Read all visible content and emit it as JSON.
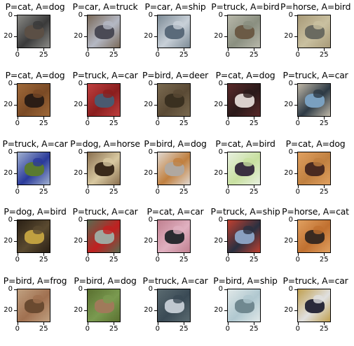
{
  "figure": {
    "axis": {
      "y_ticks": [
        "0",
        "20"
      ],
      "x_ticks": [
        "0",
        "25"
      ]
    },
    "panels": [
      {
        "title": "P=cat, A=dog",
        "image": "dark animal on grey",
        "colors": [
          "#3a3a3a",
          "#5b4f45",
          "#8a8a86"
        ]
      },
      {
        "title": "P=car, A=truck",
        "image": "truck",
        "colors": [
          "#b4b8c4",
          "#4a4a55",
          "#7a6a5a"
        ]
      },
      {
        "title": "P=car, A=ship",
        "image": "ship",
        "colors": [
          "#c8d0d8",
          "#5a6a7a",
          "#7d8b96"
        ]
      },
      {
        "title": "P=truck, A=bird",
        "image": "bird",
        "colors": [
          "#8a8f80",
          "#6b5a45",
          "#b8b8aa"
        ]
      },
      {
        "title": "P=horse, A=bird",
        "image": "bird on sand",
        "colors": [
          "#c9c0a0",
          "#6a6a60",
          "#a89a78"
        ]
      },
      {
        "title": "P=cat, A=dog",
        "image": "dog",
        "colors": [
          "#7a4a25",
          "#2b1d15",
          "#a06a3a"
        ]
      },
      {
        "title": "P=truck, A=car",
        "image": "red car",
        "colors": [
          "#8a1e1e",
          "#4a5a70",
          "#c04040"
        ]
      },
      {
        "title": "P=bird, A=deer",
        "image": "deer",
        "colors": [
          "#5a4a35",
          "#3a3020",
          "#7a6a50"
        ]
      },
      {
        "title": "P=cat, A=dog",
        "image": "dark dog",
        "colors": [
          "#2a1a1a",
          "#d9d0cc",
          "#5a2a2a"
        ]
      },
      {
        "title": "P=truck, A=car",
        "image": "car",
        "colors": [
          "#2d3a45",
          "#7aa0c0",
          "#c0b8a8"
        ]
      },
      {
        "title": "P=truck, A=car",
        "image": "blue car",
        "colors": [
          "#2a3a9a",
          "#5a7a30",
          "#a0b0d0"
        ]
      },
      {
        "title": "P=dog, A=horse",
        "image": "horse",
        "colors": [
          "#d8c8a0",
          "#3a2a1a",
          "#8a7050"
        ]
      },
      {
        "title": "P=bird, A=dog",
        "image": "dog",
        "colors": [
          "#c08040",
          "#b0a8a0",
          "#e0d8d0"
        ]
      },
      {
        "title": "P=cat, A=bird",
        "image": "bird",
        "colors": [
          "#c8e0a0",
          "#3a3040",
          "#e8f0e0"
        ]
      },
      {
        "title": "P=cat, A=dog",
        "image": "dog",
        "colors": [
          "#c08040",
          "#4a2a20",
          "#e0a060"
        ]
      },
      {
        "title": "P=dog, A=bird",
        "image": "bird",
        "colors": [
          "#5a4a30",
          "#c0a040",
          "#2a2015"
        ]
      },
      {
        "title": "P=truck, A=car",
        "image": "red car",
        "colors": [
          "#c02020",
          "#a0a8a0",
          "#5a6a50"
        ]
      },
      {
        "title": "P=cat, A=car",
        "image": "pink car",
        "colors": [
          "#e0b0c0",
          "#2a2a30",
          "#c08090"
        ]
      },
      {
        "title": "P=truck, A=ship",
        "image": "ship",
        "colors": [
          "#2a3040",
          "#8aa0c0",
          "#c04030"
        ]
      },
      {
        "title": "P=horse, A=cat",
        "image": "cat",
        "colors": [
          "#c07030",
          "#3a2a20",
          "#e0a060"
        ]
      },
      {
        "title": "P=bird, A=frog",
        "image": "frog",
        "colors": [
          "#a07050",
          "#6a4a30",
          "#c0a080"
        ]
      },
      {
        "title": "P=bird, A=dog",
        "image": "dog on grass",
        "colors": [
          "#7a9a50",
          "#a07a5a",
          "#5a7030"
        ]
      },
      {
        "title": "P=truck, A=car",
        "image": "car",
        "colors": [
          "#3a4a55",
          "#c0c8d0",
          "#5a6a70"
        ]
      },
      {
        "title": "P=bird, A=ship",
        "image": "ship",
        "colors": [
          "#b0c8d0",
          "#708890",
          "#e0e8e8"
        ]
      },
      {
        "title": "P=truck, A=car",
        "image": "police car",
        "colors": [
          "#e0e0e0",
          "#2a2a3a",
          "#c0a050"
        ]
      }
    ]
  }
}
